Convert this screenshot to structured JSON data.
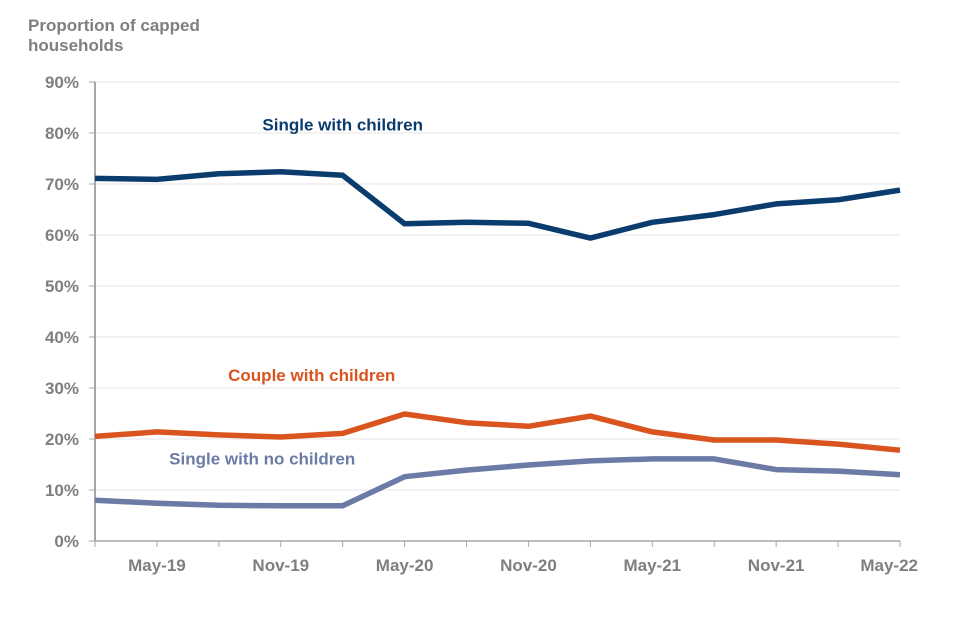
{
  "chart_data": {
    "type": "line",
    "title": "",
    "ylabel": "Proportion of capped households",
    "xlabel": "",
    "ylim": [
      0,
      90
    ],
    "yticks": [
      0,
      10,
      20,
      30,
      40,
      50,
      60,
      70,
      80,
      90
    ],
    "ytick_labels": [
      "0%",
      "10%",
      "20%",
      "30%",
      "40%",
      "50%",
      "60%",
      "70%",
      "80%",
      "90%"
    ],
    "grid": true,
    "x": [
      "Feb-19",
      "May-19",
      "Aug-19",
      "Nov-19",
      "Feb-20",
      "May-20",
      "Aug-20",
      "Nov-20",
      "Feb-21",
      "May-21",
      "Aug-21",
      "Nov-21",
      "Feb-22",
      "May-22"
    ],
    "xtick_labels": [
      {
        "index": 1,
        "label": "May-19"
      },
      {
        "index": 3,
        "label": "Nov-19"
      },
      {
        "index": 5,
        "label": "May-20"
      },
      {
        "index": 7,
        "label": "Nov-20"
      },
      {
        "index": 9,
        "label": "May-21"
      },
      {
        "index": 11,
        "label": "Nov-21"
      },
      {
        "index": 13,
        "label": "May-22"
      }
    ],
    "series": [
      {
        "name": "Single with children",
        "color": "#0b3c6e",
        "values": [
          71.1,
          70.9,
          72.0,
          72.4,
          71.7,
          62.2,
          62.5,
          62.3,
          59.4,
          62.5,
          64.0,
          66.1,
          66.9,
          68.8
        ],
        "label_anchor": {
          "index": 4,
          "value": 80.5
        }
      },
      {
        "name": "Couple with children",
        "color": "#d9541e",
        "values": [
          20.5,
          21.4,
          20.8,
          20.4,
          21.1,
          24.9,
          23.2,
          22.5,
          24.5,
          21.4,
          19.8,
          19.8,
          19.0,
          17.8
        ],
        "label_anchor": {
          "index": 3.5,
          "value": 31.4
        }
      },
      {
        "name": "Single with no children",
        "color": "#6b7ba6",
        "values": [
          8.0,
          7.4,
          7.0,
          6.9,
          6.9,
          12.6,
          13.9,
          14.9,
          15.7,
          16.1,
          16.1,
          14.0,
          13.7,
          13.0
        ],
        "label_anchor": {
          "index": 2.7,
          "value": 15.0
        }
      }
    ]
  }
}
